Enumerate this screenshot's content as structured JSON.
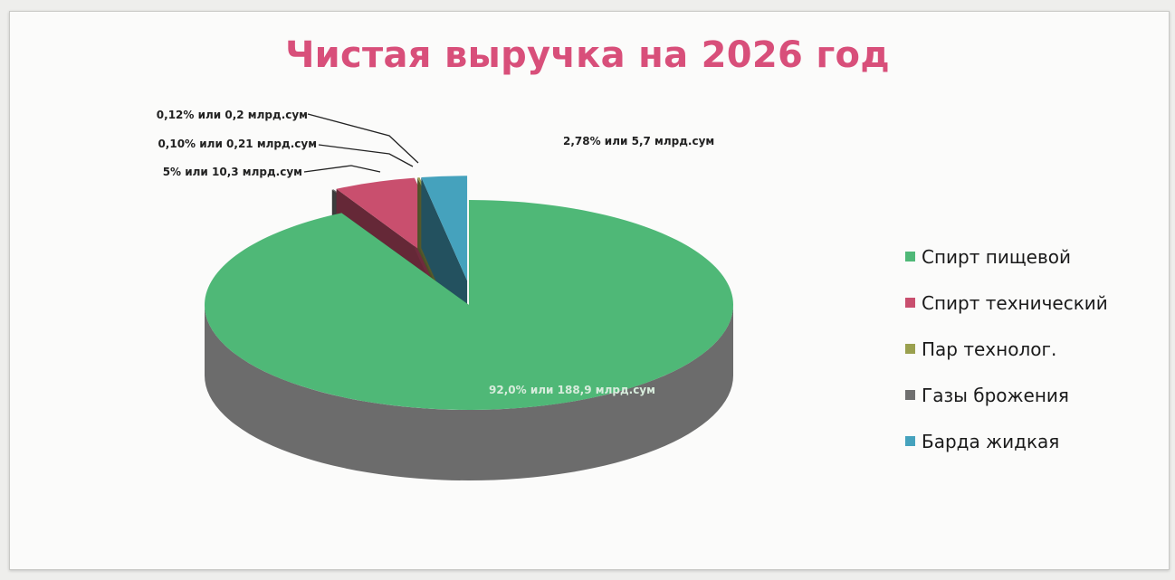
{
  "chart_data": {
    "type": "pie",
    "title": "Чистая выручка на 2026 год",
    "categories": [
      "Спирт пищевой",
      "Спирт технический",
      "Пар технолог.",
      "Газы брожения",
      "Барда жидкая"
    ],
    "values": [
      92.0,
      5.0,
      0.12,
      0.1,
      2.78
    ],
    "colors": [
      "#4fb877",
      "#c94f6e",
      "#9aa04e",
      "#6f6f6f",
      "#45a2bd"
    ],
    "data_labels": [
      "92,0% или 188,9 млрд.сум",
      "5% или 10,3 млрд.сум",
      "0,12% или 0,2 млрд.сум",
      "0,10% или 0,21 млрд.сум",
      "2,78% или 5,7 млрд.сум"
    ],
    "legend_position": "right",
    "three_d": true
  }
}
